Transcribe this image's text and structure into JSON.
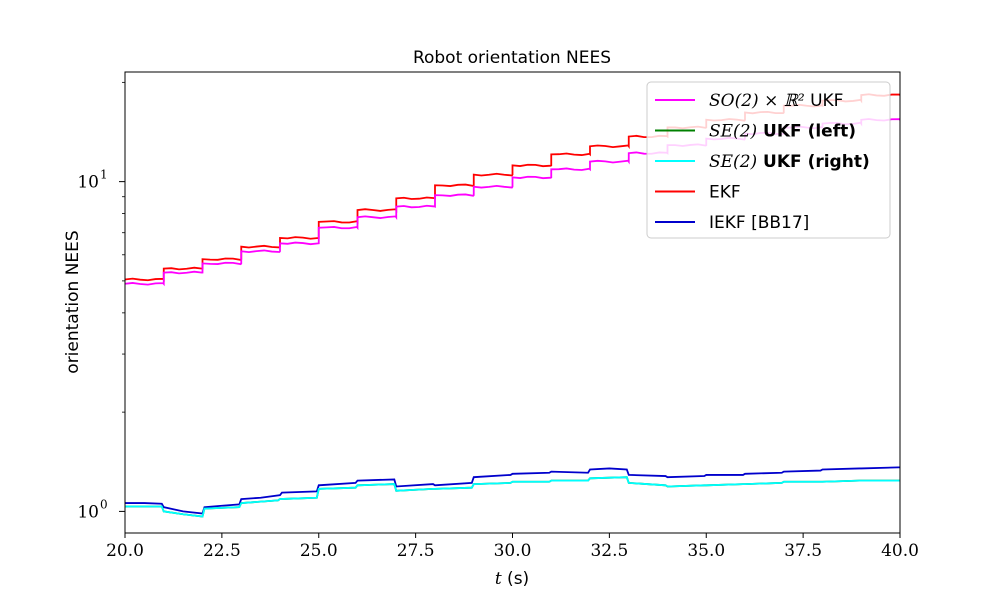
{
  "chart_data": {
    "type": "line",
    "title": "Robot orientation NEES",
    "xlabel_var": "t",
    "xlabel_unit": " (s)",
    "ylabel": "orientation NEES",
    "xlim": [
      20.0,
      40.0
    ],
    "ylim_log": [
      0.86,
      21.5
    ],
    "yscale": "log",
    "x_ticks": [
      {
        "value": 20.0,
        "label": "20.0"
      },
      {
        "value": 22.5,
        "label": "22.5"
      },
      {
        "value": 25.0,
        "label": "25.0"
      },
      {
        "value": 27.5,
        "label": "27.5"
      },
      {
        "value": 30.0,
        "label": "30.0"
      },
      {
        "value": 32.5,
        "label": "32.5"
      },
      {
        "value": 35.0,
        "label": "35.0"
      },
      {
        "value": 37.5,
        "label": "37.5"
      },
      {
        "value": 40.0,
        "label": "40.0"
      }
    ],
    "y_major_ticks": [
      {
        "value": 1,
        "base": "10",
        "exp": "0"
      },
      {
        "value": 10,
        "base": "10",
        "exp": "1"
      }
    ],
    "y_minor_ticks": [
      2,
      3,
      4,
      5,
      6,
      7,
      8,
      9,
      20
    ],
    "legend": {
      "placement": "top-right",
      "entries": [
        {
          "series": "so2",
          "math": "SO(2) × ℝ²",
          "text": " UKF",
          "bold": false
        },
        {
          "series": "se2_left",
          "math": "SE(2)",
          "text": " UKF (left)",
          "bold": true
        },
        {
          "series": "se2_right",
          "math": "SE(2)",
          "text": " UKF (right)",
          "bold": true
        },
        {
          "series": "ekf",
          "math": "",
          "text": "EKF",
          "bold": false
        },
        {
          "series": "iekf",
          "math": "",
          "text": "IEKF [BB17]",
          "bold": false
        }
      ]
    },
    "series": [
      {
        "id": "ekf",
        "color": "#ff0000",
        "steps": [
          {
            "x": 20.0,
            "y": 5.05
          },
          {
            "x": 21.0,
            "y": 5.45
          },
          {
            "x": 22.0,
            "y": 5.82
          },
          {
            "x": 23.0,
            "y": 6.35
          },
          {
            "x": 24.0,
            "y": 6.75
          },
          {
            "x": 25.0,
            "y": 7.55
          },
          {
            "x": 26.0,
            "y": 8.2
          },
          {
            "x": 27.0,
            "y": 8.9
          },
          {
            "x": 28.0,
            "y": 9.75
          },
          {
            "x": 29.0,
            "y": 10.5
          },
          {
            "x": 30.0,
            "y": 11.2
          },
          {
            "x": 31.0,
            "y": 12.1
          },
          {
            "x": 32.0,
            "y": 12.8
          },
          {
            "x": 33.0,
            "y": 13.7
          },
          {
            "x": 34.0,
            "y": 14.6
          },
          {
            "x": 35.0,
            "y": 15.4
          },
          {
            "x": 36.0,
            "y": 16.2
          },
          {
            "x": 37.0,
            "y": 17.0
          },
          {
            "x": 38.0,
            "y": 17.6
          },
          {
            "x": 39.0,
            "y": 18.3
          },
          {
            "x": 40.0,
            "y": 18.4
          }
        ]
      },
      {
        "id": "so2",
        "color": "#ff00ff",
        "steps": [
          {
            "x": 20.0,
            "y": 4.9
          },
          {
            "x": 21.0,
            "y": 5.3
          },
          {
            "x": 22.0,
            "y": 5.65
          },
          {
            "x": 23.0,
            "y": 6.15
          },
          {
            "x": 24.0,
            "y": 6.5
          },
          {
            "x": 25.0,
            "y": 7.25
          },
          {
            "x": 26.0,
            "y": 7.8
          },
          {
            "x": 27.0,
            "y": 8.4
          },
          {
            "x": 28.0,
            "y": 9.1
          },
          {
            "x": 29.0,
            "y": 9.65
          },
          {
            "x": 30.0,
            "y": 10.3
          },
          {
            "x": 31.0,
            "y": 10.9
          },
          {
            "x": 32.0,
            "y": 11.5
          },
          {
            "x": 33.0,
            "y": 12.2
          },
          {
            "x": 34.0,
            "y": 12.9
          },
          {
            "x": 35.0,
            "y": 13.5
          },
          {
            "x": 36.0,
            "y": 14.0
          },
          {
            "x": 37.0,
            "y": 14.6
          },
          {
            "x": 38.0,
            "y": 15.0
          },
          {
            "x": 39.0,
            "y": 15.4
          },
          {
            "x": 40.0,
            "y": 15.5
          }
        ]
      },
      {
        "id": "iekf",
        "color": "#0000cc",
        "points": [
          [
            20.0,
            1.06
          ],
          [
            20.5,
            1.06
          ],
          [
            20.95,
            1.055
          ],
          [
            21.0,
            1.03
          ],
          [
            21.5,
            1.0
          ],
          [
            22.0,
            0.985
          ],
          [
            22.05,
            1.03
          ],
          [
            22.5,
            1.04
          ],
          [
            22.95,
            1.05
          ],
          [
            23.0,
            1.09
          ],
          [
            23.5,
            1.1
          ],
          [
            24.0,
            1.12
          ],
          [
            24.05,
            1.14
          ],
          [
            24.95,
            1.15
          ],
          [
            25.0,
            1.2
          ],
          [
            25.95,
            1.22
          ],
          [
            26.0,
            1.24
          ],
          [
            26.95,
            1.25
          ],
          [
            27.0,
            1.19
          ],
          [
            27.95,
            1.21
          ],
          [
            28.0,
            1.2
          ],
          [
            28.95,
            1.22
          ],
          [
            29.0,
            1.27
          ],
          [
            29.95,
            1.29
          ],
          [
            30.0,
            1.3
          ],
          [
            30.95,
            1.31
          ],
          [
            31.0,
            1.32
          ],
          [
            31.95,
            1.31
          ],
          [
            32.0,
            1.34
          ],
          [
            32.5,
            1.35
          ],
          [
            32.95,
            1.34
          ],
          [
            33.0,
            1.29
          ],
          [
            33.95,
            1.28
          ],
          [
            34.0,
            1.27
          ],
          [
            34.95,
            1.28
          ],
          [
            35.0,
            1.29
          ],
          [
            35.95,
            1.29
          ],
          [
            36.0,
            1.3
          ],
          [
            36.95,
            1.31
          ],
          [
            37.0,
            1.32
          ],
          [
            37.95,
            1.33
          ],
          [
            38.0,
            1.34
          ],
          [
            38.95,
            1.35
          ],
          [
            39.0,
            1.35
          ],
          [
            39.95,
            1.36
          ],
          [
            40.0,
            1.36
          ]
        ]
      },
      {
        "id": "se2_left",
        "color": "#008000",
        "points": [
          [
            20.0,
            1.035
          ],
          [
            20.95,
            1.035
          ],
          [
            21.0,
            1.0
          ],
          [
            21.5,
            0.98
          ],
          [
            22.0,
            0.965
          ],
          [
            22.05,
            1.02
          ],
          [
            22.95,
            1.03
          ],
          [
            23.0,
            1.06
          ],
          [
            23.95,
            1.08
          ],
          [
            24.0,
            1.09
          ],
          [
            24.95,
            1.1
          ],
          [
            25.0,
            1.17
          ],
          [
            25.95,
            1.18
          ],
          [
            26.0,
            1.2
          ],
          [
            26.95,
            1.21
          ],
          [
            27.0,
            1.155
          ],
          [
            27.95,
            1.17
          ],
          [
            28.0,
            1.17
          ],
          [
            28.95,
            1.18
          ],
          [
            29.0,
            1.21
          ],
          [
            29.95,
            1.22
          ],
          [
            30.0,
            1.23
          ],
          [
            30.95,
            1.23
          ],
          [
            31.0,
            1.24
          ],
          [
            31.95,
            1.24
          ],
          [
            32.0,
            1.26
          ],
          [
            32.95,
            1.27
          ],
          [
            33.0,
            1.22
          ],
          [
            33.95,
            1.2
          ],
          [
            34.0,
            1.19
          ],
          [
            34.95,
            1.2
          ],
          [
            35.0,
            1.2
          ],
          [
            35.95,
            1.21
          ],
          [
            36.0,
            1.21
          ],
          [
            36.95,
            1.22
          ],
          [
            37.0,
            1.23
          ],
          [
            37.95,
            1.23
          ],
          [
            38.0,
            1.23
          ],
          [
            38.95,
            1.24
          ],
          [
            39.0,
            1.24
          ],
          [
            39.95,
            1.24
          ],
          [
            40.0,
            1.24
          ]
        ]
      },
      {
        "id": "se2_right",
        "color": "#00ffff",
        "points": [
          [
            20.0,
            1.035
          ],
          [
            20.95,
            1.035
          ],
          [
            21.0,
            1.0
          ],
          [
            21.5,
            0.98
          ],
          [
            22.0,
            0.965
          ],
          [
            22.05,
            1.02
          ],
          [
            22.95,
            1.03
          ],
          [
            23.0,
            1.06
          ],
          [
            23.95,
            1.08
          ],
          [
            24.0,
            1.09
          ],
          [
            24.95,
            1.1
          ],
          [
            25.0,
            1.17
          ],
          [
            25.95,
            1.18
          ],
          [
            26.0,
            1.2
          ],
          [
            26.95,
            1.21
          ],
          [
            27.0,
            1.155
          ],
          [
            27.95,
            1.17
          ],
          [
            28.0,
            1.17
          ],
          [
            28.95,
            1.18
          ],
          [
            29.0,
            1.21
          ],
          [
            29.95,
            1.22
          ],
          [
            30.0,
            1.23
          ],
          [
            30.95,
            1.23
          ],
          [
            31.0,
            1.24
          ],
          [
            31.95,
            1.24
          ],
          [
            32.0,
            1.26
          ],
          [
            32.95,
            1.27
          ],
          [
            33.0,
            1.22
          ],
          [
            33.95,
            1.2
          ],
          [
            34.0,
            1.19
          ],
          [
            34.95,
            1.2
          ],
          [
            35.0,
            1.2
          ],
          [
            35.95,
            1.21
          ],
          [
            36.0,
            1.21
          ],
          [
            36.95,
            1.22
          ],
          [
            37.0,
            1.23
          ],
          [
            37.95,
            1.23
          ],
          [
            38.0,
            1.23
          ],
          [
            38.95,
            1.24
          ],
          [
            39.0,
            1.24
          ],
          [
            39.95,
            1.24
          ],
          [
            40.0,
            1.24
          ]
        ]
      }
    ]
  }
}
